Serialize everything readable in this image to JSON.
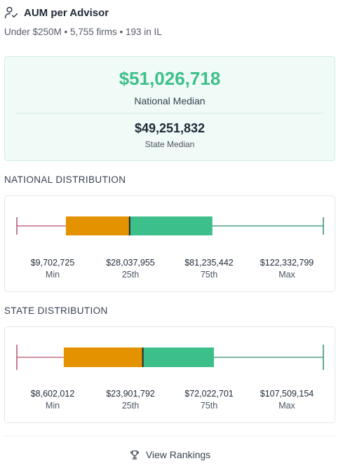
{
  "header": {
    "title": "AUM per Advisor",
    "icon": "user-check-icon",
    "subtitle": "Under $250M • 5,755 firms • 193 in IL"
  },
  "summary": {
    "national_value": "$51,026,718",
    "national_label": "National Median",
    "state_value": "$49,251,832",
    "state_label": "State Median"
  },
  "colors": {
    "accent": "#3dbf8a",
    "orange": "#e59200",
    "min_whisker": "#b8506e",
    "max_whisker": "#2f8f6a"
  },
  "national": {
    "title": "NATIONAL DISTRIBUTION",
    "box_fractions": {
      "q1": 0.16,
      "median": 0.368,
      "q3": 0.638
    },
    "stats": [
      {
        "value": "$9,702,725",
        "label": "Min"
      },
      {
        "value": "$28,037,955",
        "label": "25th"
      },
      {
        "value": "$81,235,442",
        "label": "75th"
      },
      {
        "value": "$122,332,799",
        "label": "Max"
      }
    ]
  },
  "state": {
    "title": "STATE DISTRIBUTION",
    "box_fractions": {
      "q1": 0.153,
      "median": 0.411,
      "q3": 0.643
    },
    "stats": [
      {
        "value": "$8,602,012",
        "label": "Min"
      },
      {
        "value": "$23,901,792",
        "label": "25th"
      },
      {
        "value": "$72,022,701",
        "label": "75th"
      },
      {
        "value": "$107,509,154",
        "label": "Max"
      }
    ]
  },
  "footer": {
    "button_label": "View Rankings",
    "icon": "trophy-icon"
  }
}
